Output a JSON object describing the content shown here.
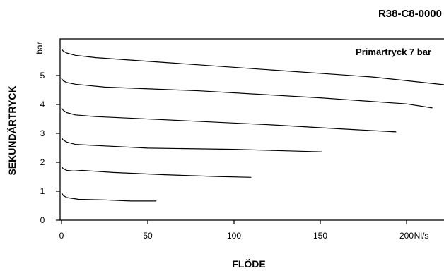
{
  "chart_data": {
    "type": "line",
    "code": "R38-C8-0000",
    "annotation": "Primärtryck 7 bar",
    "xlabel": "FLÖDE",
    "ylabel": "SEKUNDÄRTRYCK",
    "xunit": "Nl/s",
    "yunit": "bar",
    "xlim": [
      0,
      225
    ],
    "ylim": [
      0,
      6.1
    ],
    "xticks": [
      "0",
      "50",
      "100",
      "150",
      "200"
    ],
    "xtick_values": [
      0,
      50,
      100,
      150,
      200
    ],
    "yticks": [
      "0",
      "1",
      "2",
      "3",
      "4",
      "5"
    ],
    "ytick_values": [
      0,
      1,
      2,
      3,
      4,
      5
    ],
    "grid": false,
    "series": [
      {
        "points": [
          [
            0,
            0.95
          ],
          [
            1,
            0.85
          ],
          [
            3,
            0.78
          ],
          [
            10,
            0.72
          ],
          [
            25,
            0.7
          ],
          [
            40,
            0.66
          ],
          [
            55,
            0.66
          ]
        ]
      },
      {
        "points": [
          [
            0,
            1.85
          ],
          [
            1,
            1.78
          ],
          [
            3,
            1.72
          ],
          [
            7,
            1.7
          ],
          [
            12,
            1.72
          ],
          [
            30,
            1.65
          ],
          [
            60,
            1.57
          ],
          [
            90,
            1.51
          ],
          [
            110,
            1.48
          ]
        ]
      },
      {
        "points": [
          [
            0,
            2.85
          ],
          [
            1,
            2.77
          ],
          [
            3,
            2.7
          ],
          [
            8,
            2.62
          ],
          [
            20,
            2.58
          ],
          [
            50,
            2.49
          ],
          [
            100,
            2.45
          ],
          [
            151,
            2.36
          ]
        ]
      },
      {
        "points": [
          [
            0,
            3.88
          ],
          [
            1,
            3.8
          ],
          [
            3,
            3.72
          ],
          [
            8,
            3.64
          ],
          [
            20,
            3.58
          ],
          [
            60,
            3.47
          ],
          [
            120,
            3.3
          ],
          [
            160,
            3.16
          ],
          [
            194,
            3.05
          ]
        ]
      },
      {
        "points": [
          [
            0,
            4.9
          ],
          [
            1,
            4.82
          ],
          [
            3,
            4.76
          ],
          [
            8,
            4.7
          ],
          [
            25,
            4.6
          ],
          [
            80,
            4.47
          ],
          [
            150,
            4.23
          ],
          [
            200,
            4.02
          ],
          [
            215,
            3.88
          ]
        ]
      },
      {
        "points": [
          [
            0,
            5.92
          ],
          [
            1,
            5.85
          ],
          [
            3,
            5.78
          ],
          [
            8,
            5.7
          ],
          [
            20,
            5.62
          ],
          [
            60,
            5.45
          ],
          [
            120,
            5.2
          ],
          [
            180,
            4.95
          ],
          [
            222,
            4.68
          ]
        ]
      }
    ]
  }
}
